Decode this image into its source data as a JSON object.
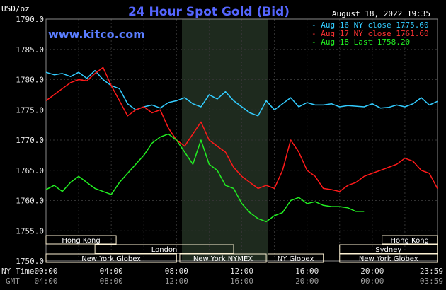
{
  "chart_data": {
    "type": "line",
    "title": "24 Hour Spot Gold (Bid)",
    "site": "www.kitco.com",
    "timestamp": "August 18, 2022 19:35",
    "ylabel": "USD/oz",
    "ylim": [
      1750,
      1790
    ],
    "yticks": [
      "1790.0",
      "1785.0",
      "1780.0",
      "1775.0",
      "1770.0",
      "1765.0",
      "1760.0",
      "1755.0",
      "1750.0"
    ],
    "x_row1_label": "NY Time",
    "x_row2_label": "GMT",
    "x_ticks_ny": [
      "00:00",
      "04:00",
      "08:00",
      "12:00",
      "16:00",
      "20:00",
      "23:59"
    ],
    "x_ticks_gmt": [
      "04:00",
      "08:00",
      "12:00",
      "16:00",
      "20:00",
      "00:00",
      "03:59"
    ],
    "colors": {
      "aug16": "#33ccff",
      "aug17": "#ff1a1a",
      "aug18": "#22ee22",
      "session_fill": "#fbf0d2",
      "shade": "#1e2a1e"
    },
    "legend": [
      {
        "name": "Aug 16 NY close 1775.60",
        "color": "#33ccff"
      },
      {
        "name": "Aug 17 NY close 1761.60",
        "color": "#ff3333"
      },
      {
        "name": "Aug 18 Last 1758.20",
        "color": "#22ee22"
      }
    ],
    "sessions": [
      {
        "name": "Hong Kong",
        "row": 0,
        "start": 0,
        "end": 4.3
      },
      {
        "name": "Hong Kong",
        "row": 0,
        "start": 20.6,
        "end": 23.99
      },
      {
        "name": "London",
        "row": 1,
        "start": 3.0,
        "end": 11.5
      },
      {
        "name": "Sydney",
        "row": 1,
        "start": 18.0,
        "end": 23.99
      },
      {
        "name": "New York Globex",
        "row": 2,
        "start": 0,
        "end": 8.0
      },
      {
        "name": "New York NYMEX",
        "row": 2,
        "start": 8.2,
        "end": 13.5
      },
      {
        "name": "NY Globex",
        "row": 2,
        "start": 13.6,
        "end": 17.0
      },
      {
        "name": "New York Globex",
        "row": 2,
        "start": 18.0,
        "end": 23.99
      }
    ],
    "series": [
      {
        "name": "Aug 16",
        "x": [
          0,
          0.5,
          1,
          1.5,
          2,
          2.5,
          3,
          3.5,
          4,
          4.5,
          5,
          5.5,
          6,
          6.5,
          7,
          7.5,
          8,
          8.5,
          9,
          9.5,
          10,
          10.5,
          11,
          11.5,
          12,
          12.5,
          13,
          13.5,
          14,
          14.5,
          15,
          15.5,
          16,
          16.5,
          17,
          17.5,
          18,
          18.5,
          19,
          19.5,
          20,
          20.5,
          21,
          21.5,
          22,
          22.5,
          23,
          23.5,
          23.99
        ],
        "values": [
          1781.2,
          1780.8,
          1781.0,
          1780.5,
          1781.2,
          1780.2,
          1781.5,
          1780.0,
          1779.0,
          1778.5,
          1776.0,
          1775.0,
          1775.5,
          1775.8,
          1775.3,
          1776.2,
          1776.5,
          1777.0,
          1776.0,
          1775.5,
          1777.5,
          1776.8,
          1778.0,
          1776.5,
          1775.5,
          1774.5,
          1774.0,
          1776.5,
          1775.0,
          1776.0,
          1777.0,
          1775.5,
          1776.2,
          1775.8,
          1775.8,
          1776.0,
          1775.5,
          1775.7,
          1775.6,
          1775.5,
          1776.0,
          1775.3,
          1775.4,
          1775.8,
          1775.5,
          1776.0,
          1777.0,
          1775.8,
          1776.4
        ]
      },
      {
        "name": "Aug 17",
        "x": [
          0,
          0.5,
          1,
          1.5,
          2,
          2.5,
          3,
          3.5,
          4,
          4.5,
          5,
          5.5,
          6,
          6.5,
          7,
          7.5,
          8,
          8.5,
          9,
          9.5,
          10,
          10.5,
          11,
          11.5,
          12,
          12.5,
          13,
          13.5,
          14,
          14.5,
          15,
          15.5,
          16,
          16.5,
          17,
          17.5,
          18,
          18.5,
          19,
          19.5,
          20,
          20.5,
          21,
          21.5,
          22,
          22.5,
          23,
          23.5,
          23.99
        ],
        "values": [
          1776.5,
          1777.5,
          1778.5,
          1779.5,
          1780.0,
          1779.8,
          1781.0,
          1782.0,
          1779.0,
          1776.5,
          1774.0,
          1775.0,
          1775.5,
          1774.5,
          1775.0,
          1772.0,
          1770.0,
          1769.0,
          1771.0,
          1773.0,
          1770.0,
          1769.0,
          1768.0,
          1765.5,
          1764.0,
          1763.0,
          1762.0,
          1762.5,
          1762.0,
          1765.0,
          1770.0,
          1768.0,
          1765.0,
          1764.0,
          1762.0,
          1761.8,
          1761.5,
          1762.5,
          1763.0,
          1764.0,
          1764.5,
          1765.0,
          1765.5,
          1766.0,
          1767.0,
          1766.5,
          1765.0,
          1764.5,
          1762.0
        ]
      },
      {
        "name": "Aug 18",
        "x": [
          0,
          0.5,
          1,
          1.5,
          2,
          2.5,
          3,
          3.5,
          4,
          4.5,
          5,
          5.5,
          6,
          6.5,
          7,
          7.5,
          8,
          8.5,
          9,
          9.5,
          10,
          10.5,
          11,
          11.5,
          12,
          12.5,
          13,
          13.5,
          14,
          14.5,
          15,
          15.5,
          16,
          16.5,
          17,
          17.5,
          18,
          18.5,
          19,
          19.5
        ],
        "values": [
          1761.8,
          1762.5,
          1761.5,
          1763.0,
          1764.0,
          1763.0,
          1762.0,
          1761.5,
          1761.0,
          1763.0,
          1764.5,
          1766.0,
          1767.5,
          1769.5,
          1770.5,
          1771.0,
          1770.0,
          1768.0,
          1766.0,
          1770.0,
          1766.0,
          1765.0,
          1762.5,
          1762.0,
          1759.5,
          1758.0,
          1757.0,
          1756.5,
          1757.5,
          1758.0,
          1760.0,
          1760.5,
          1759.5,
          1759.8,
          1759.2,
          1759.0,
          1759.0,
          1758.8,
          1758.2,
          1758.2
        ]
      }
    ]
  }
}
